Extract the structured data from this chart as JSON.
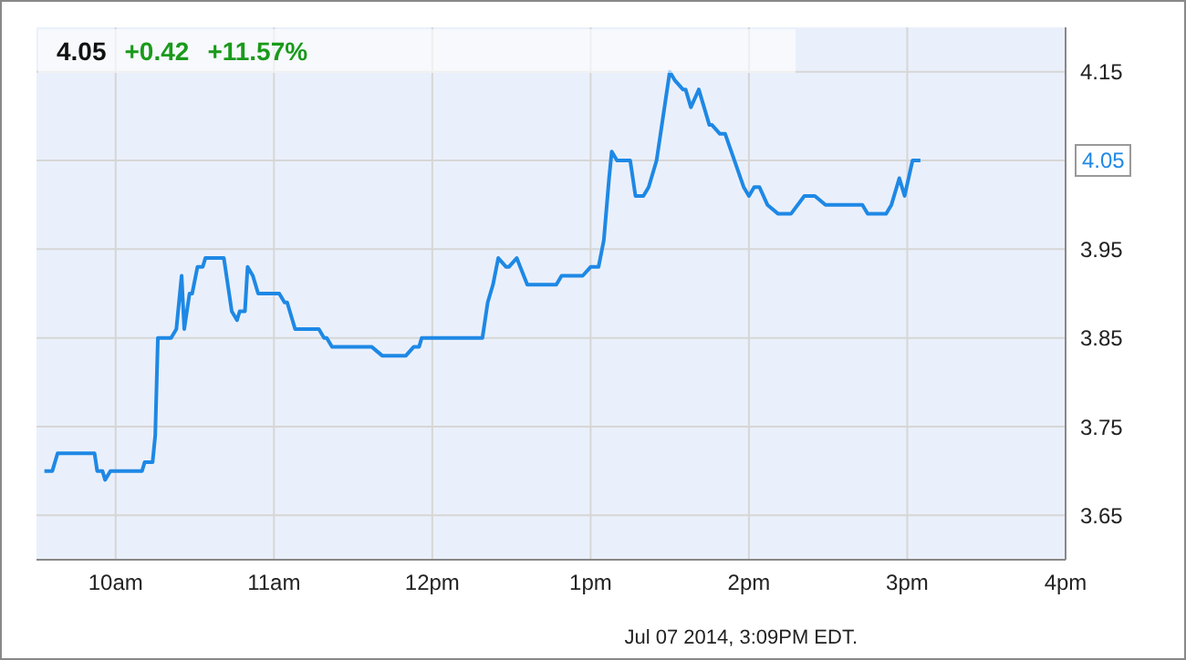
{
  "chart_data": {
    "type": "line",
    "title": "4.05",
    "subtitle": "+0.42 +11.57%",
    "annotations": [
      "4.05",
      "Jul 07 2014, 3:09PM EDT."
    ],
    "x": [
      "2014-07-07T09:33",
      "2014-07-07T09:36",
      "2014-07-07T09:38",
      "2014-07-07T09:52",
      "2014-07-07T09:53",
      "2014-07-07T09:55",
      "2014-07-07T09:56",
      "2014-07-07T09:58",
      "2014-07-07T10:10",
      "2014-07-07T10:11",
      "2014-07-07T10:14",
      "2014-07-07T10:15",
      "2014-07-07T10:16",
      "2014-07-07T10:17",
      "2014-07-07T10:21",
      "2014-07-07T10:23",
      "2014-07-07T10:25",
      "2014-07-07T10:26",
      "2014-07-07T10:28",
      "2014-07-07T10:29",
      "2014-07-07T10:31",
      "2014-07-07T10:33",
      "2014-07-07T10:34",
      "2014-07-07T10:41",
      "2014-07-07T10:44",
      "2014-07-07T10:46",
      "2014-07-07T10:47",
      "2014-07-07T10:49",
      "2014-07-07T10:50",
      "2014-07-07T10:52",
      "2014-07-07T10:54",
      "2014-07-07T11:02",
      "2014-07-07T11:04",
      "2014-07-07T11:05",
      "2014-07-07T11:08",
      "2014-07-07T11:17",
      "2014-07-07T11:19",
      "2014-07-07T11:20",
      "2014-07-07T11:22",
      "2014-07-07T11:37",
      "2014-07-07T11:41",
      "2014-07-07T11:50",
      "2014-07-07T11:53",
      "2014-07-07T11:55",
      "2014-07-07T11:56",
      "2014-07-07T12:19",
      "2014-07-07T12:21",
      "2014-07-07T12:23",
      "2014-07-07T12:25",
      "2014-07-07T12:28",
      "2014-07-07T12:29",
      "2014-07-07T12:32",
      "2014-07-07T12:36",
      "2014-07-07T12:47",
      "2014-07-07T12:49",
      "2014-07-07T12:57",
      "2014-07-07T13:00",
      "2014-07-07T13:03",
      "2014-07-07T13:05",
      "2014-07-07T13:07",
      "2014-07-07T13:08",
      "2014-07-07T13:10",
      "2014-07-07T13:15",
      "2014-07-07T13:17",
      "2014-07-07T13:20",
      "2014-07-07T13:22",
      "2014-07-07T13:25",
      "2014-07-07T13:30",
      "2014-07-07T13:32",
      "2014-07-07T13:35",
      "2014-07-07T13:36",
      "2014-07-07T13:38",
      "2014-07-07T13:41",
      "2014-07-07T13:45",
      "2014-07-07T13:46",
      "2014-07-07T13:49",
      "2014-07-07T13:51",
      "2014-07-07T13:58",
      "2014-07-07T14:00",
      "2014-07-07T14:02",
      "2014-07-07T14:04",
      "2014-07-07T14:07",
      "2014-07-07T14:11",
      "2014-07-07T14:16",
      "2014-07-07T14:21",
      "2014-07-07T14:25",
      "2014-07-07T14:29",
      "2014-07-07T14:43",
      "2014-07-07T14:45",
      "2014-07-07T14:52",
      "2014-07-07T14:54",
      "2014-07-07T14:57",
      "2014-07-07T14:59",
      "2014-07-07T15:02",
      "2014-07-07T15:05"
    ],
    "series": [
      {
        "color": "#1e88e5",
        "values": [
          3.7,
          3.7,
          3.72,
          3.72,
          3.7,
          3.7,
          3.69,
          3.7,
          3.7,
          3.71,
          3.71,
          3.74,
          3.85,
          3.85,
          3.85,
          3.86,
          3.92,
          3.86,
          3.9,
          3.9,
          3.93,
          3.93,
          3.94,
          3.94,
          3.88,
          3.87,
          3.88,
          3.88,
          3.93,
          3.92,
          3.9,
          3.9,
          3.89,
          3.89,
          3.86,
          3.86,
          3.85,
          3.85,
          3.84,
          3.84,
          3.83,
          3.83,
          3.84,
          3.84,
          3.85,
          3.85,
          3.89,
          3.91,
          3.94,
          3.93,
          3.93,
          3.94,
          3.91,
          3.91,
          3.92,
          3.92,
          3.93,
          3.93,
          3.96,
          4.03,
          4.06,
          4.05,
          4.05,
          4.01,
          4.01,
          4.02,
          4.05,
          4.15,
          4.14,
          4.13,
          4.13,
          4.11,
          4.13,
          4.09,
          4.09,
          4.08,
          4.08,
          4.02,
          4.01,
          4.02,
          4.02,
          4.0,
          3.99,
          3.99,
          4.01,
          4.01,
          4.0,
          4.0,
          3.99,
          3.99,
          4.0,
          4.03,
          4.01,
          4.05,
          4.05
        ]
      }
    ],
    "xlim": [
      "2014-07-07T09:30",
      "2014-07-07T16:00"
    ],
    "xticks": [
      {
        "value": "2014-07-07T10:00",
        "label": "10am"
      },
      {
        "value": "2014-07-07T11:00",
        "label": "11am"
      },
      {
        "value": "2014-07-07T12:00",
        "label": "12pm"
      },
      {
        "value": "2014-07-07T13:00",
        "label": "1pm"
      },
      {
        "value": "2014-07-07T14:00",
        "label": "2pm"
      },
      {
        "value": "2014-07-07T15:00",
        "label": "3pm"
      },
      {
        "value": "2014-07-07T16:00",
        "label": "4pm"
      }
    ],
    "ylim": [
      3.6,
      4.2
    ],
    "yticks": [
      3.65,
      3.75,
      3.85,
      3.95,
      4.05,
      4.15
    ],
    "grid": true,
    "legend": false,
    "marker": "none",
    "line_style": "solid"
  }
}
